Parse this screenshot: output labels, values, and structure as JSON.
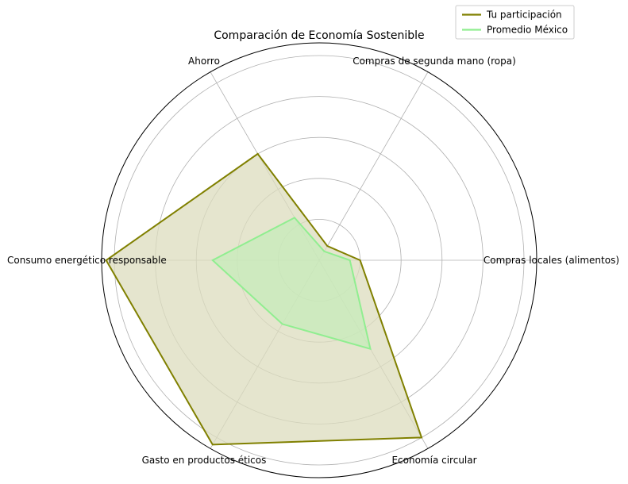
{
  "chart_data": {
    "type": "radar",
    "title": "Comparación de Economía Sostenible",
    "categories": [
      "Compras locales (alimentos)",
      "Compras de segunda mano (ropa)",
      "Ahorro",
      "Consumo energético responsable",
      "Gasto en productos éticos",
      "Economía circular"
    ],
    "rmax": 5,
    "rings": [
      1,
      2,
      3,
      4,
      5
    ],
    "series": [
      {
        "name": "Tu participación",
        "color": "#808000",
        "fill": "#dcdcbe",
        "values": [
          1.0,
          0.4,
          3.0,
          5.2,
          5.2,
          5.0
        ]
      },
      {
        "name": "Promedio México",
        "color": "#90ee90",
        "fill": "#c6ebba",
        "values": [
          0.75,
          0.25,
          1.2,
          2.6,
          1.8,
          2.5
        ]
      }
    ],
    "legend_position": "top-right",
    "grid": true
  }
}
